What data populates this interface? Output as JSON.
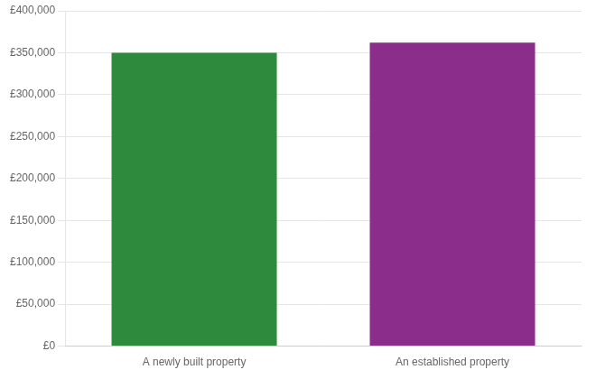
{
  "chart_data": {
    "type": "bar",
    "categories": [
      "A newly built property",
      "An established property"
    ],
    "values": [
      350000,
      362000
    ],
    "colors": [
      "#2e8b3e",
      "#8b2d8b"
    ],
    "ylim": [
      0,
      400000
    ],
    "yticks": [
      {
        "value": 0,
        "label": "£0"
      },
      {
        "value": 50000,
        "label": "£50,000"
      },
      {
        "value": 100000,
        "label": "£100,000"
      },
      {
        "value": 150000,
        "label": "£150,000"
      },
      {
        "value": 200000,
        "label": "£200,000"
      },
      {
        "value": 250000,
        "label": "£250,000"
      },
      {
        "value": 300000,
        "label": "£300,000"
      },
      {
        "value": 350000,
        "label": "£350,000"
      },
      {
        "value": 400000,
        "label": "£400,000"
      }
    ],
    "grid": true
  }
}
